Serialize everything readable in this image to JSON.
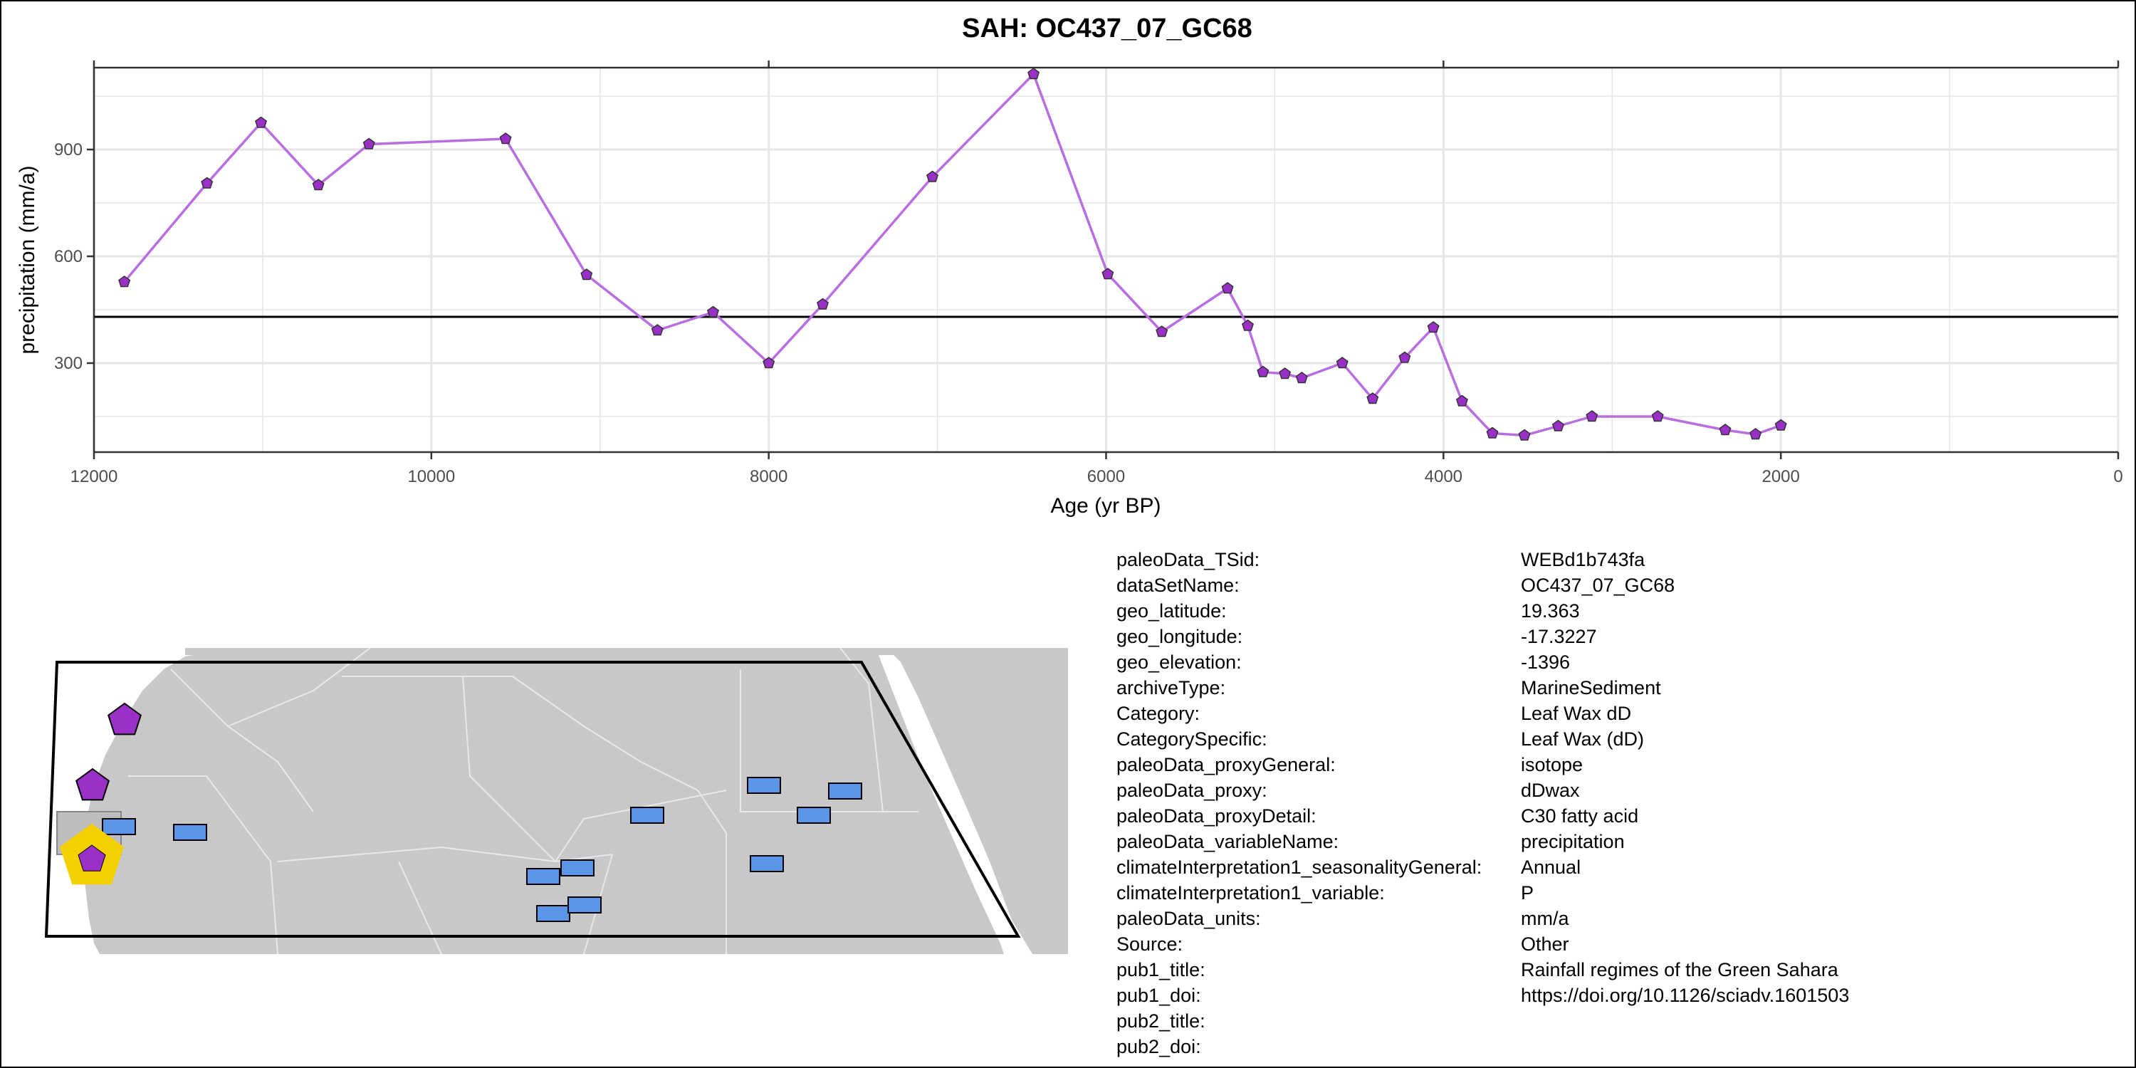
{
  "chart_data": {
    "type": "line",
    "title": "SAH: OC437_07_GC68",
    "xlabel": "Age (yr BP)",
    "ylabel": "precipitation (mm/a)",
    "xlim": [
      12000,
      0
    ],
    "ylim": [
      50,
      1130
    ],
    "x_reversed": true,
    "x_ticks": [
      12000,
      10000,
      8000,
      6000,
      4000,
      2000,
      0
    ],
    "y_ticks": [
      300,
      600,
      900
    ],
    "reference_line_y": 430,
    "grid": true,
    "colors": {
      "series": "#b86ee0",
      "marker": "#9b30c8",
      "reference": "#000000",
      "grid": "#e6e6e6"
    },
    "series": [
      {
        "x": [
          11820,
          11330,
          11010,
          10670,
          10370,
          9560,
          9080,
          8660,
          8330,
          8000,
          7680,
          7030,
          6430,
          5990,
          5670,
          5280,
          5160,
          5070,
          4940,
          4840,
          4600,
          4420,
          4230,
          4060,
          3890,
          3710,
          3520,
          3320,
          3120,
          2730,
          2330,
          2150,
          2000
        ],
        "y": [
          528,
          805,
          975,
          800,
          915,
          930,
          548,
          392,
          443,
          300,
          465,
          823,
          1112,
          550,
          388,
          510,
          405,
          275,
          270,
          258,
          300,
          200,
          315,
          400,
          193,
          103,
          97,
          123,
          150,
          150,
          112,
          100,
          125
        ]
      }
    ]
  },
  "map": {
    "land_color": "#c8c8c8",
    "border_color": "#e8e8e8",
    "region_outline_color": "#000000",
    "target_site_color": "#9b30c8",
    "target_highlight_color": "#f5d000",
    "site_color": "#9b30c8",
    "record_color": "#5b95e8"
  },
  "metadata": [
    {
      "key": "paleoData_TSid:",
      "value": "WEBd1b743fa"
    },
    {
      "key": "dataSetName:",
      "value": "OC437_07_GC68"
    },
    {
      "key": "geo_latitude:",
      "value": "19.363"
    },
    {
      "key": "geo_longitude:",
      "value": "-17.3227"
    },
    {
      "key": "geo_elevation:",
      "value": "-1396"
    },
    {
      "key": "archiveType:",
      "value": "MarineSediment"
    },
    {
      "key": "Category:",
      "value": "Leaf Wax dD"
    },
    {
      "key": "CategorySpecific:",
      "value": "Leaf Wax (dD)"
    },
    {
      "key": "paleoData_proxyGeneral:",
      "value": "isotope"
    },
    {
      "key": "paleoData_proxy:",
      "value": "dDwax"
    },
    {
      "key": "paleoData_proxyDetail:",
      "value": "C30 fatty acid"
    },
    {
      "key": "paleoData_variableName:",
      "value": "precipitation"
    },
    {
      "key": "climateInterpretation1_seasonalityGeneral:",
      "value": "Annual"
    },
    {
      "key": "climateInterpretation1_variable:",
      "value": "P"
    },
    {
      "key": "paleoData_units:",
      "value": "mm/a"
    },
    {
      "key": "Source:",
      "value": "Other"
    },
    {
      "key": "pub1_title:",
      "value": "Rainfall regimes of the Green Sahara"
    },
    {
      "key": "pub1_doi:",
      "value": "https://doi.org/10.1126/sciadv.1601503"
    },
    {
      "key": "pub2_title:",
      "value": ""
    },
    {
      "key": "pub2_doi:",
      "value": ""
    }
  ]
}
